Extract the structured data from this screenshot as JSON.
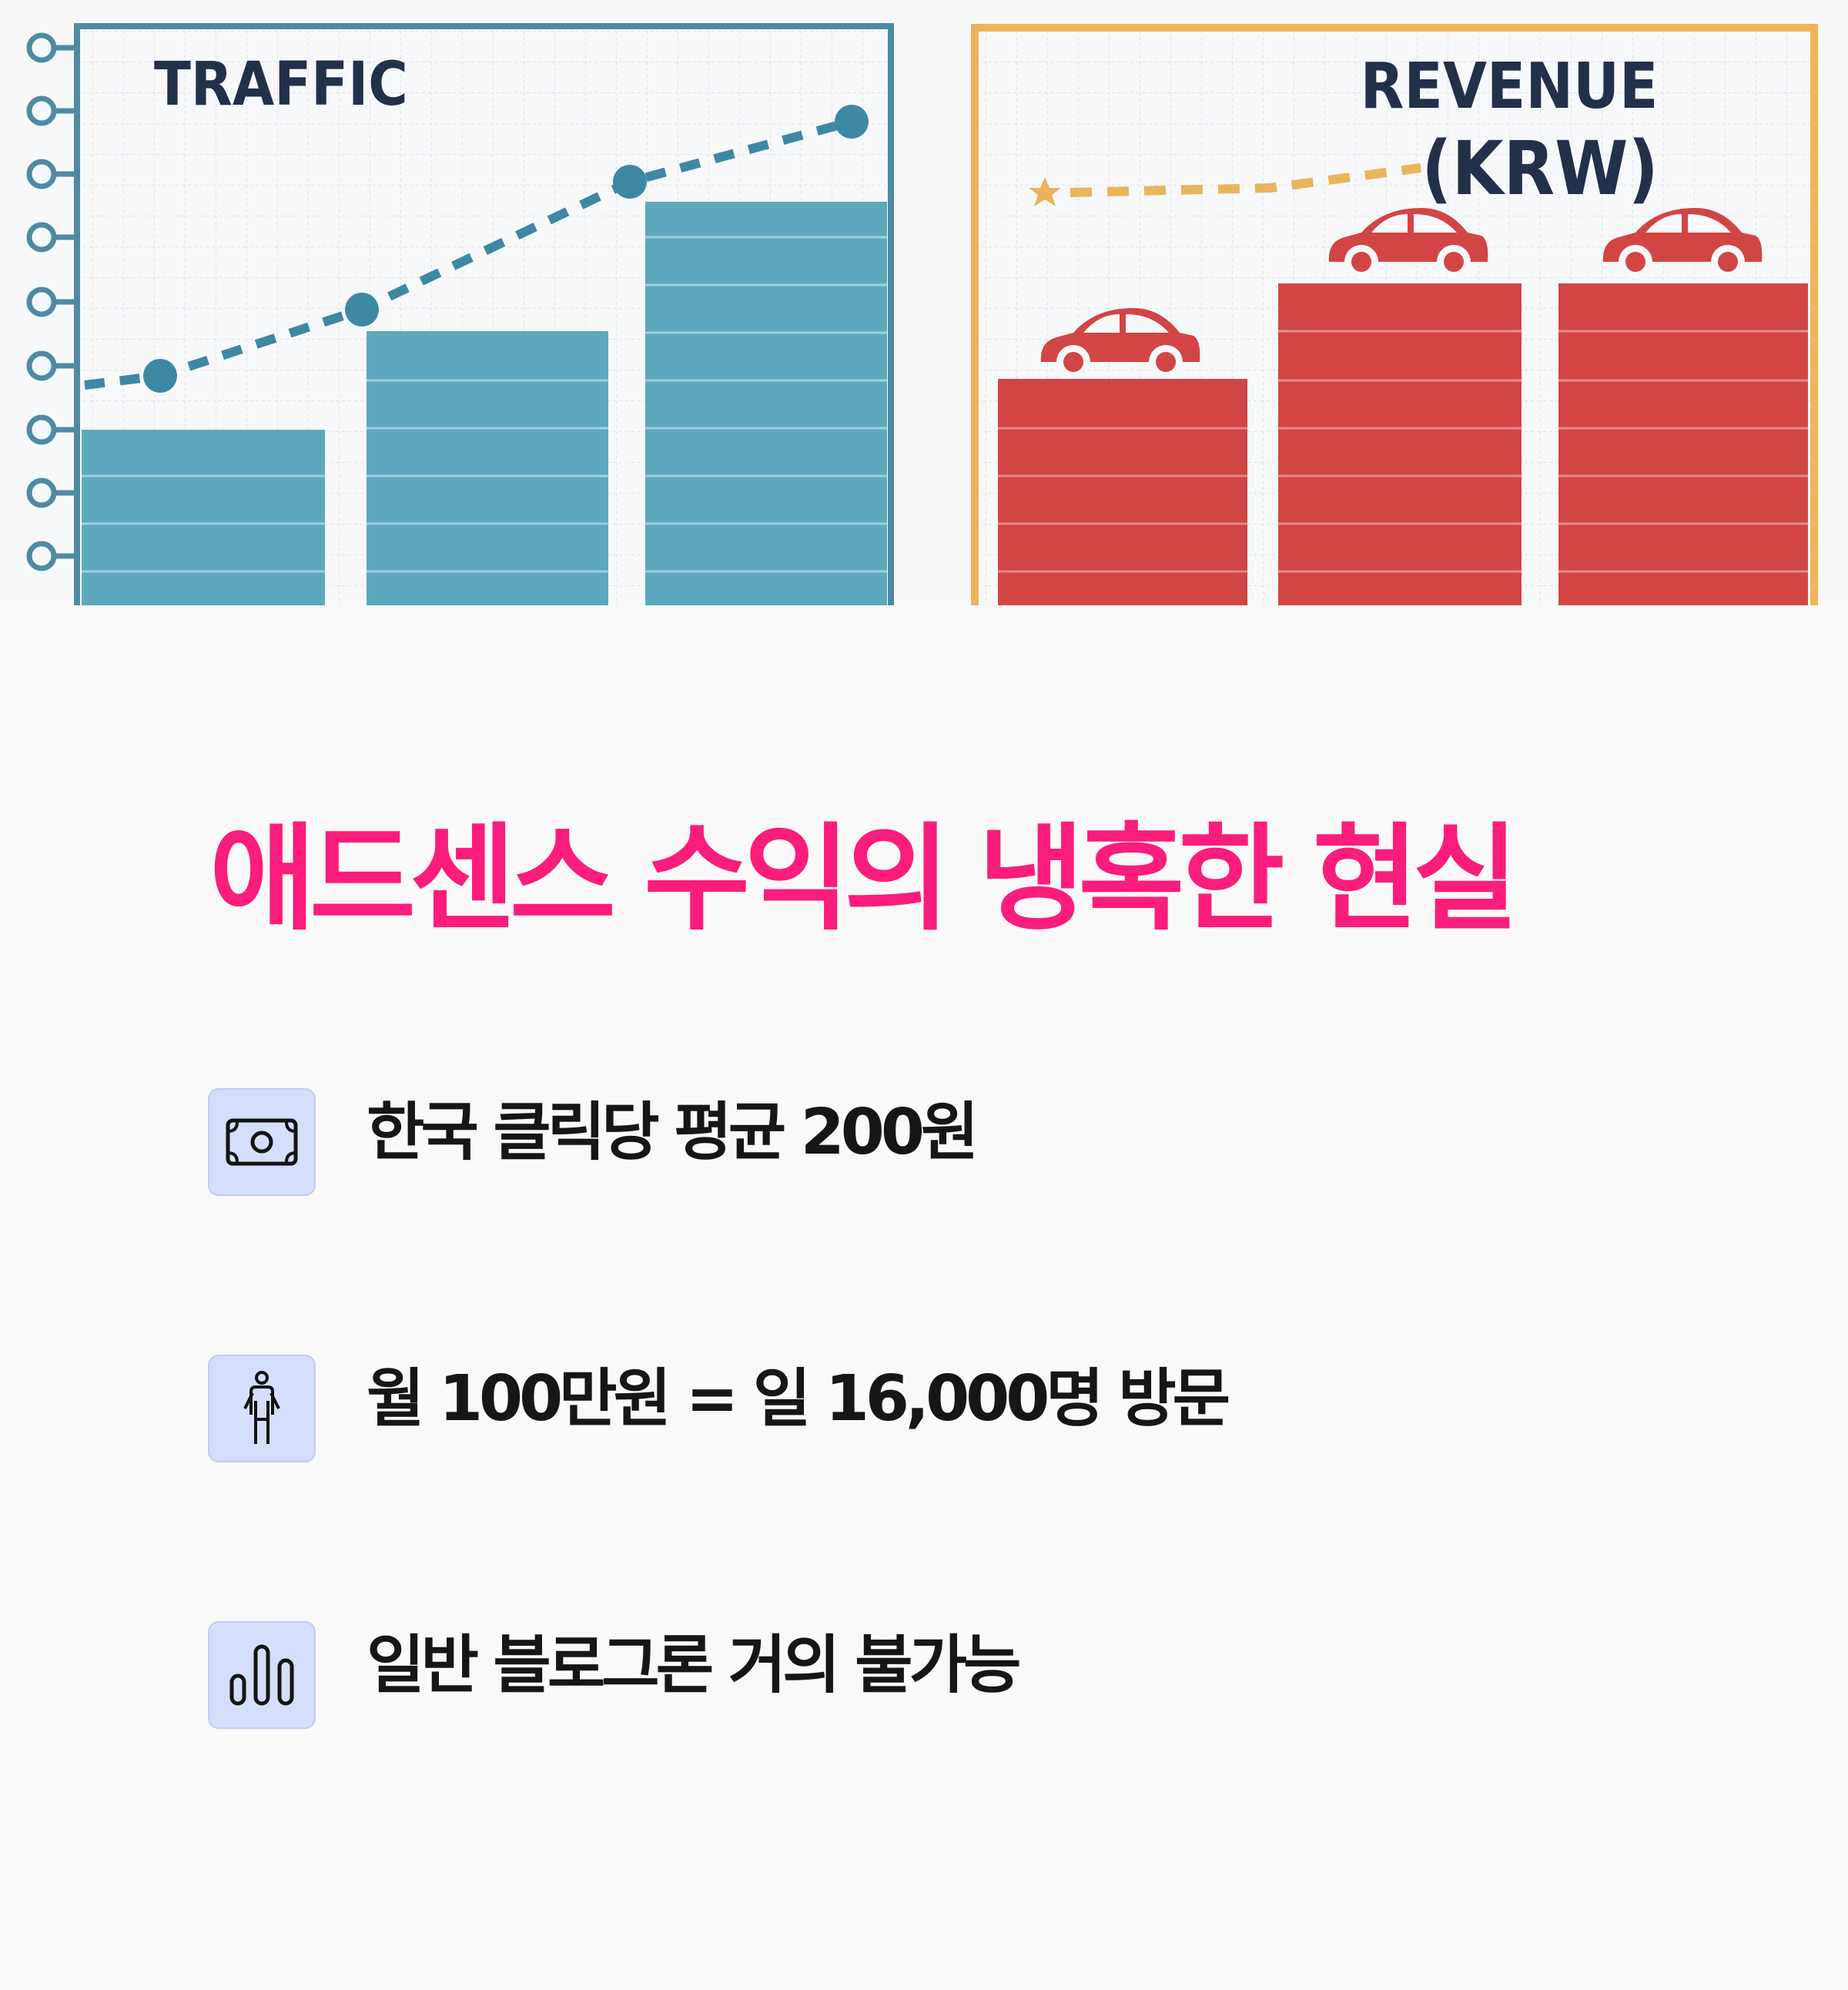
{
  "illustration": {
    "traffic_chart": {
      "title": "TRAFFIC",
      "bar_color": "#5ea8bd",
      "frame_color": "#4f8aa3",
      "trend_color": "#3e88a4"
    },
    "revenue_chart": {
      "title_line1": "REVENUE",
      "title_line2": "(KRW)",
      "bar_color": "#d24545",
      "frame_color": "#f0b35a",
      "trend_color": "#eab45a",
      "car_icon": "car-icon",
      "star_icon": "star-icon"
    }
  },
  "headline": "애드센스 수익의 냉혹한 현실",
  "facts": [
    {
      "icon": "money-bill-icon",
      "text": "한국 클릭당 평균 200원"
    },
    {
      "icon": "person-icon",
      "text": "월 100만원 = 일 16,000명 방문"
    },
    {
      "icon": "bar-chart-icon",
      "text": "일반 블로그론 거의 불가능"
    }
  ],
  "colors": {
    "headline": "#fa1d7c",
    "icon_tile": "#d5defa",
    "text": "#161616",
    "background": "#f9f9f9"
  }
}
